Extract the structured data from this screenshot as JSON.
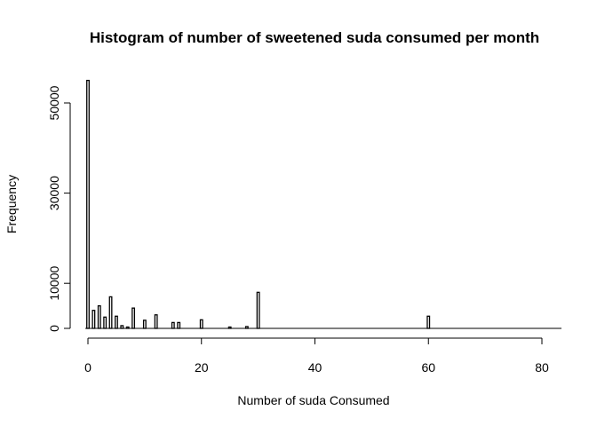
{
  "chart_data": {
    "type": "bar",
    "title": "Histogram of number of sweetened suda consumed per month",
    "xlabel": "Number of suda Consumed",
    "ylabel": "Frequency",
    "xlim": [
      0,
      83
    ],
    "ylim": [
      0,
      55000
    ],
    "x_ticks": [
      0,
      20,
      40,
      60,
      80
    ],
    "y_ticks": [
      0,
      10000,
      30000,
      50000
    ],
    "grid": false,
    "bin_width": 0.4,
    "bins": [
      {
        "x": 0,
        "count": 55000
      },
      {
        "x": 1,
        "count": 4000
      },
      {
        "x": 2,
        "count": 5000
      },
      {
        "x": 3,
        "count": 2500
      },
      {
        "x": 4,
        "count": 7000
      },
      {
        "x": 5,
        "count": 2700
      },
      {
        "x": 6,
        "count": 600
      },
      {
        "x": 7,
        "count": 300
      },
      {
        "x": 8,
        "count": 4500
      },
      {
        "x": 10,
        "count": 1800
      },
      {
        "x": 12,
        "count": 3000
      },
      {
        "x": 15,
        "count": 1300
      },
      {
        "x": 16,
        "count": 1300
      },
      {
        "x": 20,
        "count": 1900
      },
      {
        "x": 25,
        "count": 300
      },
      {
        "x": 28,
        "count": 400
      },
      {
        "x": 30,
        "count": 8000
      },
      {
        "x": 60,
        "count": 2700
      }
    ]
  }
}
